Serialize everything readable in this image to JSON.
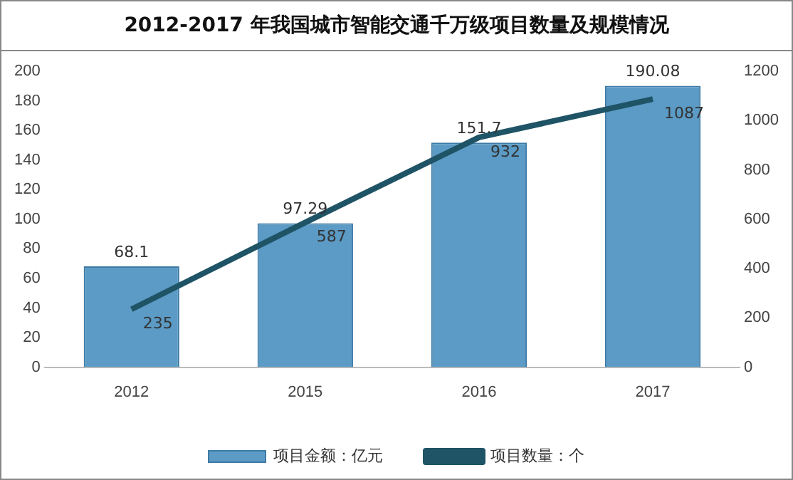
{
  "chart_data": {
    "type": "bar",
    "title": "2012-2017 年我国城市智能交通千万级项目数量及规模情况",
    "categories": [
      "2012",
      "2015",
      "2016",
      "2017"
    ],
    "series": [
      {
        "name": "项目金额：亿元",
        "color": "#5b9bc5",
        "values": [
          68.1,
          97.29,
          151.7,
          190.08
        ]
      },
      {
        "name": "项目数量：个",
        "type": "line",
        "axis": "y2",
        "color": "#1f5366",
        "values": [
          235,
          587,
          932,
          1087
        ]
      }
    ],
    "ylim": [
      0,
      200
    ],
    "yticks": [
      0,
      20,
      40,
      60,
      80,
      100,
      120,
      140,
      160,
      180,
      200
    ],
    "y2lim": [
      0,
      1200
    ],
    "y2ticks": [
      0,
      200,
      400,
      600,
      800,
      1000,
      1200
    ],
    "data_labels": true,
    "legend": "bottom",
    "grid": false,
    "marker": "none"
  }
}
